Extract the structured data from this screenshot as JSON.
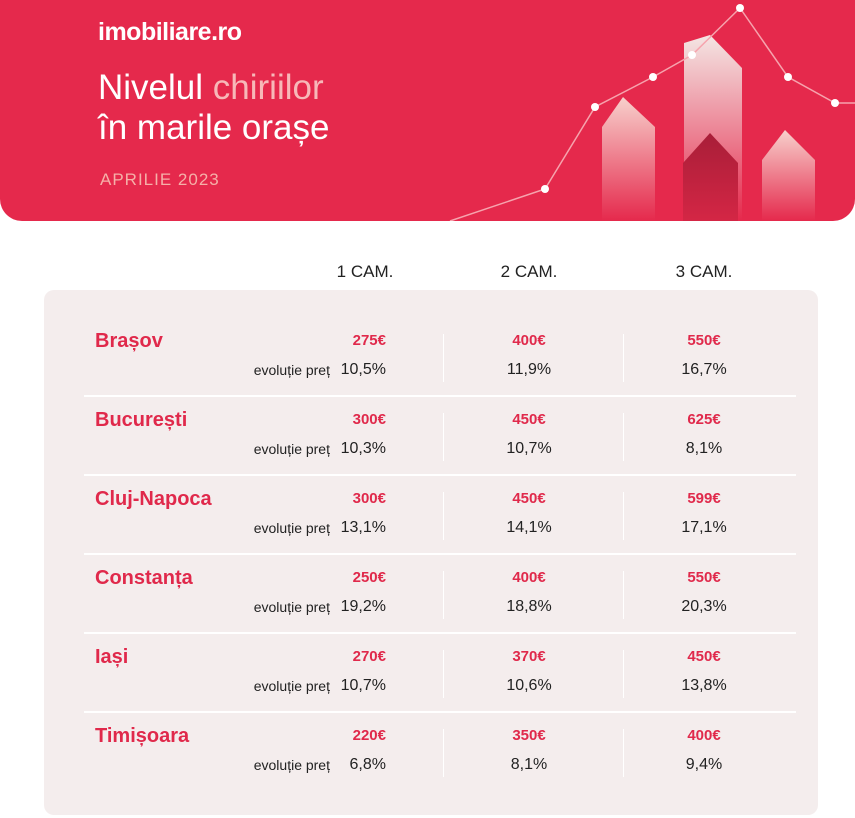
{
  "header": {
    "logo": "imobiliare.ro",
    "title_part1": "Nivelul ",
    "title_accent": "chiriilor",
    "title_line2": "în marile orașe",
    "subtitle": "APRILIE 2023"
  },
  "columns": [
    "1 CAM.",
    "2 CAM.",
    "3 CAM."
  ],
  "evolution_label": "evoluție preț",
  "rows": [
    {
      "city": "Brașov",
      "prices": [
        "275€",
        "400€",
        "550€"
      ],
      "changes": [
        "10,5%",
        "11,9%",
        "16,7%"
      ]
    },
    {
      "city": "București",
      "prices": [
        "300€",
        "450€",
        "625€"
      ],
      "changes": [
        "10,3%",
        "10,7%",
        "8,1%"
      ]
    },
    {
      "city": "Cluj-Napoca",
      "prices": [
        "300€",
        "450€",
        "599€"
      ],
      "changes": [
        "13,1%",
        "14,1%",
        "17,1%"
      ]
    },
    {
      "city": "Constanța",
      "prices": [
        "250€",
        "400€",
        "550€"
      ],
      "changes": [
        "19,2%",
        "18,8%",
        "20,3%"
      ]
    },
    {
      "city": "Iași",
      "prices": [
        "270€",
        "370€",
        "450€"
      ],
      "changes": [
        "10,7%",
        "10,6%",
        "13,8%"
      ]
    },
    {
      "city": "Timișoara",
      "prices": [
        "220€",
        "350€",
        "400€"
      ],
      "changes": [
        "6,8%",
        "8,1%",
        "9,4%"
      ]
    }
  ],
  "colors": {
    "brand": "#e5294c",
    "card": "#f4eded"
  }
}
